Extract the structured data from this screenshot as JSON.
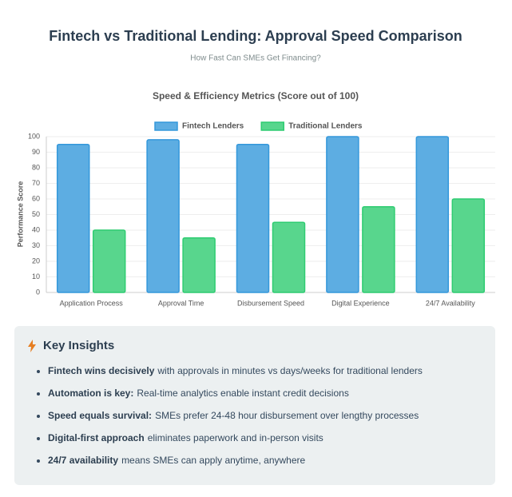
{
  "header": {
    "title": "Fintech vs Traditional Lending: Approval Speed Comparison",
    "subtitle": "How Fast Can SMEs Get Financing?"
  },
  "chart_data": {
    "type": "bar",
    "title": "Speed & Efficiency Metrics (Score out of 100)",
    "y_label": "Performance Score",
    "categories": [
      "Application Process",
      "Approval Time",
      "Disbursement Speed",
      "Digital Experience",
      "24/7 Availability"
    ],
    "series": [
      {
        "name": "Fintech Lenders",
        "color": "#5dade2",
        "border": "#3498db",
        "values": [
          95,
          98,
          95,
          100,
          100
        ]
      },
      {
        "name": "Traditional Lenders",
        "color": "#58d68d",
        "border": "#2ecc71",
        "values": [
          40,
          35,
          45,
          55,
          60
        ]
      }
    ],
    "ylim": [
      0,
      100
    ],
    "yticks": [
      0,
      10,
      20,
      30,
      40,
      50,
      60,
      70,
      80,
      90,
      100
    ],
    "grid": true,
    "legend": "top"
  },
  "insights": {
    "title": "Key Insights",
    "items": [
      {
        "bold": "Fintech wins decisively",
        "text": "with approvals in minutes vs days/weeks for traditional lenders"
      },
      {
        "bold": "Automation is key:",
        "text": "Real-time analytics enable instant credit decisions"
      },
      {
        "bold": "Speed equals survival:",
        "text": "SMEs prefer 24-48 hour disbursement over lengthy processes"
      },
      {
        "bold": "Digital-first approach",
        "text": "eliminates paperwork and in-person visits"
      },
      {
        "bold": "24/7 availability",
        "text": "means SMEs can apply anytime, anywhere"
      }
    ]
  }
}
